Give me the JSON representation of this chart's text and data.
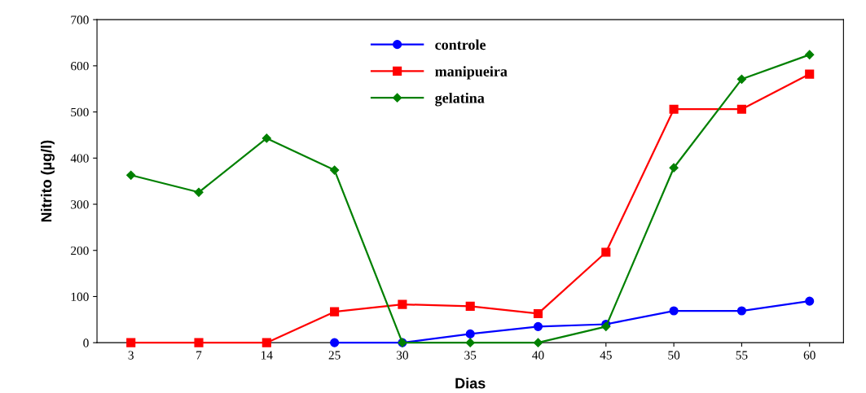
{
  "chart_data": {
    "type": "line",
    "xlabel": "Dias",
    "ylabel": "Nitrito (µg/l)",
    "categories": [
      "3",
      "7",
      "14",
      "25",
      "30",
      "35",
      "40",
      "45",
      "50",
      "55",
      "60"
    ],
    "series": [
      {
        "name": "controle",
        "color": "#0000ff",
        "marker": "circle",
        "values": [
          null,
          null,
          null,
          0,
          0,
          19,
          35,
          40,
          69,
          69,
          90
        ]
      },
      {
        "name": "manipueira",
        "color": "#ff0000",
        "marker": "square",
        "values": [
          0,
          0,
          0,
          67,
          83,
          79,
          63,
          196,
          506,
          506,
          582
        ]
      },
      {
        "name": "gelatina",
        "color": "#008000",
        "marker": "diamond",
        "values": [
          363,
          326,
          443,
          374,
          0,
          0,
          0,
          35,
          379,
          571,
          624
        ]
      }
    ],
    "ylim": [
      0,
      700
    ],
    "yticks": [
      0,
      100,
      200,
      300,
      400,
      500,
      600,
      700
    ],
    "grid": false,
    "legend": "top",
    "line_style": "solid"
  }
}
